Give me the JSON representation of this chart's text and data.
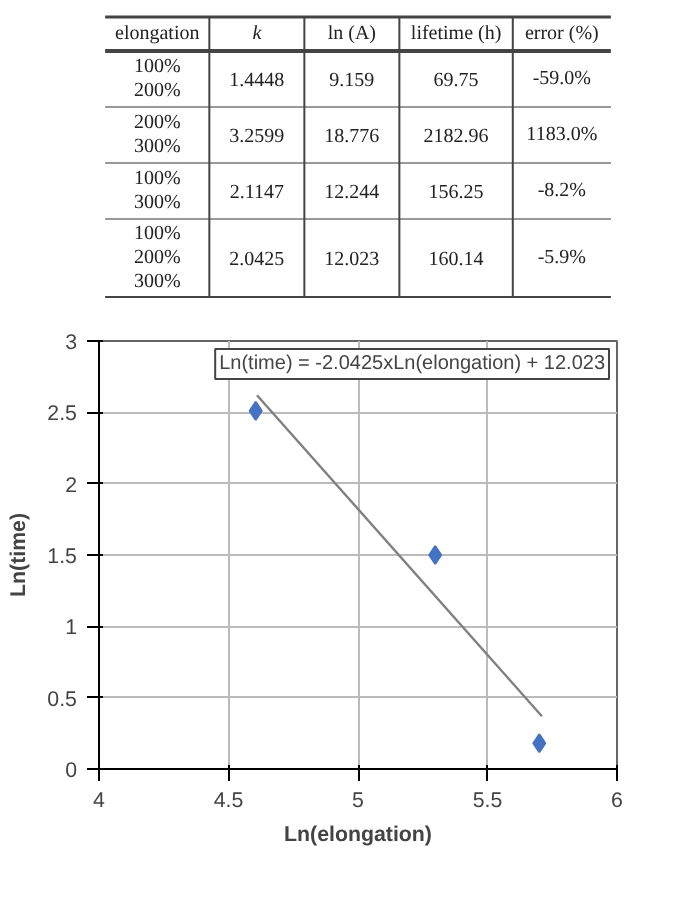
{
  "chart_data": [
    {
      "type": "other",
      "annotations": [
        "elongation",
        "k",
        "ln (A)",
        "lifetime (h)",
        "error (%)",
        "100%\n200%",
        "1.4448",
        "9.159",
        "69.75",
        "-59.0%",
        "200%\n300%",
        "3.2599",
        "18.776",
        "2182.96",
        "1183.0%",
        "100%\n300%",
        "2.1147",
        "12.244",
        "156.25",
        "-8.2%",
        "100%\n200%\n300%",
        "2.0425",
        "12.023",
        "160.14",
        "-5.9%"
      ]
    },
    {
      "type": "scatter",
      "xlabel": "Ln(elongation)",
      "ylabel": "Ln(time)",
      "xlim": [
        4,
        6
      ],
      "xticks": [
        4,
        4.5,
        5,
        5.5,
        6
      ],
      "ylim": [
        0,
        3
      ],
      "yticks": [
        0,
        0.5,
        1,
        1.5,
        2,
        2.5,
        3
      ],
      "grid": true,
      "annotations": [
        "Ln(time) = -2.0425xLn(elongation) + 12.023"
      ],
      "series": [
        {
          "color": "#4472c4",
          "marker": "diamond",
          "x": [
            4.605,
            5.298,
            5.7
          ],
          "values": [
            2.51,
            1.5,
            0.18
          ]
        },
        {
          "type": "line",
          "marker": "none",
          "color": "#808080",
          "x": [
            4.61,
            5.71
          ],
          "values": [
            2.62,
            0.37
          ]
        }
      ]
    }
  ]
}
